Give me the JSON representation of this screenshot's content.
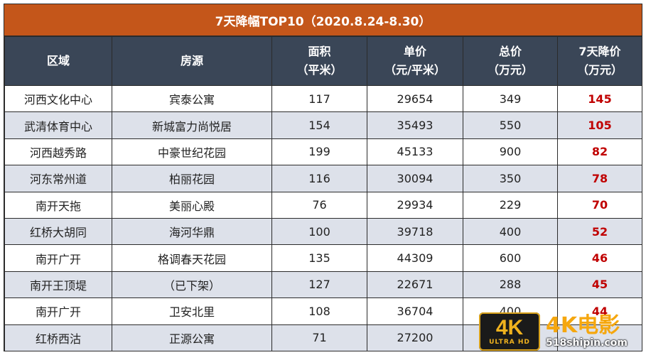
{
  "title": "7天降幅TOP10（2020.8.24-8.30）",
  "headers": [
    {
      "line1": "区域",
      "line2": ""
    },
    {
      "line1": "房源",
      "line2": ""
    },
    {
      "line1": "面积",
      "line2": "（平米）"
    },
    {
      "line1": "单价",
      "line2": "（元/平米）"
    },
    {
      "line1": "总价",
      "line2": "（万元）"
    },
    {
      "line1": "7天降价",
      "line2": "（万元）"
    }
  ],
  "rows": [
    {
      "area": "河西文化中心",
      "listing": "宾泰公寓",
      "size": "117",
      "unit_price": "29654",
      "total": "349",
      "drop": "145"
    },
    {
      "area": "武清体育中心",
      "listing": "新城富力尚悦居",
      "size": "154",
      "unit_price": "35493",
      "total": "550",
      "drop": "105"
    },
    {
      "area": "河西越秀路",
      "listing": "中豪世纪花园",
      "size": "199",
      "unit_price": "45133",
      "total": "900",
      "drop": "82"
    },
    {
      "area": "河东常州道",
      "listing": "柏丽花园",
      "size": "116",
      "unit_price": "30094",
      "total": "350",
      "drop": "78"
    },
    {
      "area": "南开天拖",
      "listing": "美丽心殿",
      "size": "76",
      "unit_price": "29934",
      "total": "229",
      "drop": "70"
    },
    {
      "area": "红桥大胡同",
      "listing": "海河华鼎",
      "size": "100",
      "unit_price": "39718",
      "total": "400",
      "drop": "52"
    },
    {
      "area": "南开广开",
      "listing": "格调春天花园",
      "size": "135",
      "unit_price": "44309",
      "total": "600",
      "drop": "46"
    },
    {
      "area": "南开王顶堤",
      "listing": "（已下架）",
      "size": "127",
      "unit_price": "22671",
      "total": "288",
      "drop": "45"
    },
    {
      "area": "南开广开",
      "listing": "卫安北里",
      "size": "108",
      "unit_price": "36704",
      "total": "400",
      "drop": "44"
    },
    {
      "area": "红桥西沽",
      "listing": "正源公寓",
      "size": "71",
      "unit_price": "27200",
      "total": "",
      "drop": ""
    }
  ],
  "watermark": {
    "badge": "4K",
    "badge_sub": "ULTRA HD",
    "brand": "4K电影",
    "site": "518shipin.com"
  },
  "colors": {
    "title_bg": "#c4561a",
    "header_bg": "#3a4657",
    "stripe": "#dde1ea",
    "drop_text": "#c00000"
  }
}
